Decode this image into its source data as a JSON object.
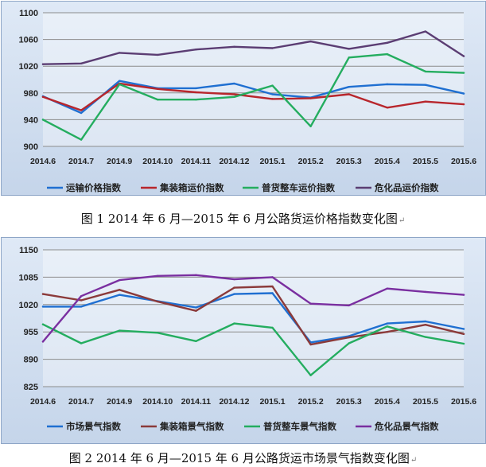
{
  "captions": {
    "chart1": "图 1  2014 年 6 月—2015 年 6 月公路货运价格指数变化图",
    "chart2": "图 2  2014 年 6 月—2015 年 6 月公路货运市场景气指数变化图"
  },
  "return_mark": "↵",
  "chart_data": [
    {
      "type": "line",
      "categories": [
        "2014.6",
        "2014.7",
        "2014.9",
        "2014.10",
        "2014.11",
        "2014.12",
        "2015.1",
        "2015.2",
        "2015.3",
        "2015.4",
        "2015.5",
        "2015.6"
      ],
      "ylim": [
        900,
        1100
      ],
      "yticks": [
        900,
        940,
        980,
        1020,
        1060,
        1100
      ],
      "grid": "horizontal",
      "legend_position": "bottom",
      "series": [
        {
          "name": "运输价格指数",
          "color": "#1f6fd1",
          "values": [
            975,
            950,
            998,
            987,
            987,
            994,
            978,
            973,
            989,
            993,
            992,
            979
          ]
        },
        {
          "name": "集装箱运价指数",
          "color": "#b8262c",
          "values": [
            974,
            954,
            994,
            986,
            981,
            978,
            971,
            972,
            978,
            958,
            967,
            963
          ]
        },
        {
          "name": "普货整车运价指数",
          "color": "#24ad5f",
          "values": [
            940,
            910,
            993,
            970,
            970,
            974,
            991,
            930,
            1033,
            1038,
            1012,
            1010
          ]
        },
        {
          "name": "危化品运价指数",
          "color": "#5b3d73",
          "values": [
            1023,
            1024,
            1040,
            1037,
            1045,
            1049,
            1047,
            1057,
            1046,
            1055,
            1072,
            1035
          ]
        }
      ]
    },
    {
      "type": "line",
      "categories": [
        "2014.6",
        "2014.7",
        "2014.9",
        "2014.10",
        "2014.11",
        "2014.12",
        "2015.1",
        "2015.2",
        "2015.3",
        "2015.4",
        "2015.5",
        "2015.6"
      ],
      "ylim": [
        825,
        1150
      ],
      "yticks": [
        825,
        890,
        955,
        1020,
        1085,
        1150
      ],
      "grid": "horizontal",
      "legend_position": "bottom",
      "series": [
        {
          "name": "市场景气指数",
          "color": "#1f6fd1",
          "values": [
            1015,
            1015,
            1043,
            1028,
            1013,
            1045,
            1047,
            930,
            945,
            975,
            980,
            962
          ]
        },
        {
          "name": "集装箱景气指数",
          "color": "#8b3a3a",
          "values": [
            1045,
            1030,
            1055,
            1027,
            1005,
            1060,
            1063,
            925,
            942,
            955,
            972,
            950
          ]
        },
        {
          "name": "普货整车景气指数",
          "color": "#24ad5f",
          "values": [
            973,
            928,
            958,
            953,
            933,
            975,
            965,
            852,
            928,
            968,
            943,
            927
          ]
        },
        {
          "name": "危化品景气指数",
          "color": "#7a2fa0",
          "values": [
            932,
            1040,
            1078,
            1088,
            1090,
            1080,
            1085,
            1022,
            1018,
            1058,
            1050,
            1043
          ]
        }
      ]
    }
  ]
}
